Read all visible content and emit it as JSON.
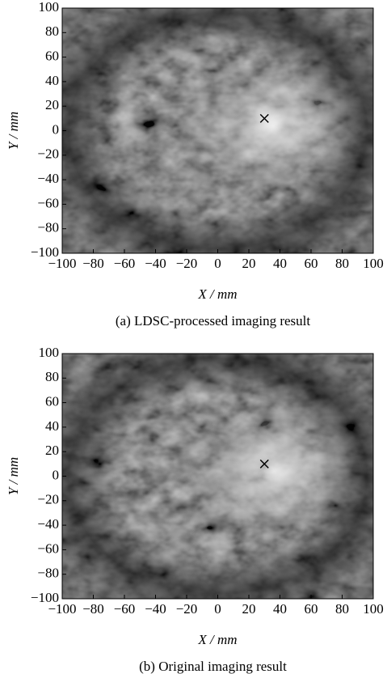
{
  "chart_data": [
    {
      "type": "scatter",
      "caption": "(a) LDSC-processed imaging result",
      "xlabel": "X / mm",
      "ylabel": "Y / mm",
      "xlim": [
        -100,
        100
      ],
      "ylim": [
        -100,
        100
      ],
      "xticks": [
        {
          "value": -100,
          "label": "−100"
        },
        {
          "value": -80,
          "label": "−80"
        },
        {
          "value": -60,
          "label": "−60"
        },
        {
          "value": -40,
          "label": "−40"
        },
        {
          "value": -20,
          "label": "−20"
        },
        0,
        20,
        40,
        60,
        80,
        100
      ],
      "yticks": [
        {
          "value": -100,
          "label": "−100"
        },
        {
          "value": -80,
          "label": "−80"
        },
        {
          "value": -60,
          "label": "−60"
        },
        {
          "value": -40,
          "label": "−40"
        },
        {
          "value": -20,
          "label": "−20"
        },
        0,
        20,
        40,
        60,
        80,
        100
      ],
      "x": [
        30
      ],
      "y": [
        10
      ],
      "color": "#000000"
    },
    {
      "type": "scatter",
      "caption": "(b) Original imaging result",
      "xlabel": "X / mm",
      "ylabel": "Y / mm",
      "xlim": [
        -100,
        100
      ],
      "ylim": [
        -100,
        100
      ],
      "xticks": [
        {
          "value": -100,
          "label": "−100"
        },
        {
          "value": -80,
          "label": "−80"
        },
        {
          "value": -60,
          "label": "−60"
        },
        {
          "value": -40,
          "label": "−40"
        },
        {
          "value": -20,
          "label": "−20"
        },
        0,
        20,
        40,
        60,
        80,
        100
      ],
      "yticks": [
        {
          "value": -100,
          "label": "−100"
        },
        {
          "value": -80,
          "label": "−80"
        },
        {
          "value": -60,
          "label": "−60"
        },
        {
          "value": -40,
          "label": "−40"
        },
        {
          "value": -20,
          "label": "−20"
        },
        0,
        20,
        40,
        60,
        80,
        100
      ],
      "x": [
        30
      ],
      "y": [
        10
      ],
      "color": "#000000"
    }
  ]
}
